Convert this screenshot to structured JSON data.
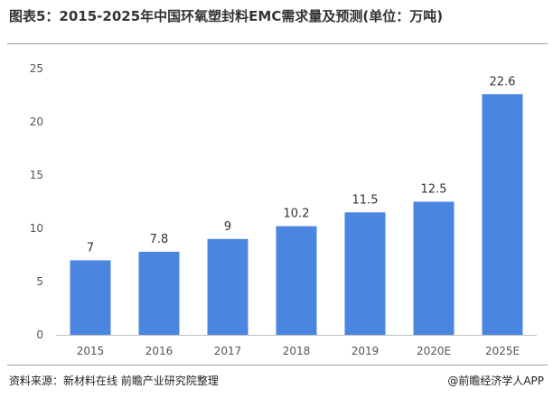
{
  "header": {
    "title": "图表5：2015-2025年中国环氧塑封料EMC需求量及预测(单位：万吨)"
  },
  "footer": {
    "source": "资料来源：新材料在线 前瞻产业研究院整理",
    "brand": "@前瞻经济学人APP"
  },
  "chart_data": {
    "type": "bar",
    "title": "图表5：2015-2025年中国环氧塑封料EMC需求量及预测(单位：万吨)",
    "categories": [
      "2015",
      "2016",
      "2017",
      "2018",
      "2019",
      "2020E",
      "2025E"
    ],
    "values": [
      7,
      7.8,
      9,
      10.2,
      11.5,
      12.5,
      22.6
    ],
    "data_labels": [
      "7",
      "7.8",
      "9",
      "10.2",
      "11.5",
      "12.5",
      "22.6"
    ],
    "yticks": [
      "0",
      "5",
      "10",
      "15",
      "20",
      "25"
    ],
    "ylim": [
      0,
      25
    ],
    "xlabel": "",
    "ylabel": "",
    "grid": false,
    "legend": "none",
    "bar_color": "#4a86e0"
  }
}
